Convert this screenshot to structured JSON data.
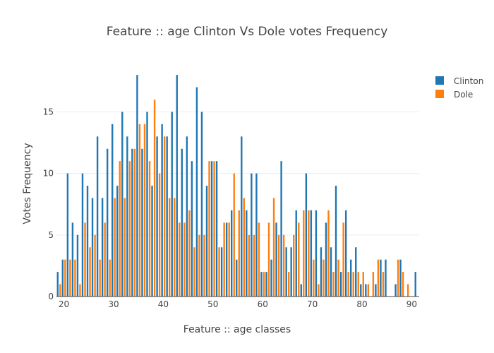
{
  "chart_data": {
    "type": "bar",
    "title": "Feature :: age Clinton Vs Dole votes Frequency",
    "xlabel": "Feature :: age classes",
    "ylabel": "Votes Frequency",
    "xlim": [
      18.5,
      91.5
    ],
    "ylim": [
      0,
      19.5
    ],
    "x_ticks": [
      20,
      30,
      40,
      50,
      60,
      70,
      80,
      90
    ],
    "y_ticks": [
      0,
      5,
      10,
      15
    ],
    "grid": true,
    "legend_position": "top-right",
    "x": [
      19,
      20,
      21,
      22,
      23,
      24,
      25,
      26,
      27,
      28,
      29,
      30,
      31,
      32,
      33,
      34,
      35,
      36,
      37,
      38,
      39,
      40,
      41,
      42,
      43,
      44,
      45,
      46,
      47,
      48,
      49,
      50,
      51,
      52,
      53,
      54,
      55,
      56,
      57,
      58,
      59,
      60,
      61,
      62,
      63,
      64,
      65,
      66,
      67,
      68,
      69,
      70,
      71,
      72,
      73,
      74,
      75,
      76,
      77,
      78,
      79,
      80,
      81,
      82,
      83,
      84,
      85,
      86,
      87,
      88,
      89,
      90,
      91
    ],
    "series": [
      {
        "name": "Clinton",
        "color": "#1f77b4",
        "values": [
          2,
          3,
          10,
          6,
          5,
          10,
          9,
          8,
          13,
          8,
          12,
          14,
          9,
          15,
          13,
          12,
          18,
          12,
          15,
          9,
          13,
          14,
          13,
          15,
          18,
          12,
          13,
          11,
          17,
          15,
          9,
          11,
          11,
          4,
          6,
          7,
          3,
          13,
          7,
          10,
          10,
          2,
          2,
          3,
          6,
          11,
          4,
          4,
          7,
          1,
          10,
          7,
          7,
          4,
          6,
          4,
          9,
          2,
          7,
          3,
          4,
          1,
          1,
          0,
          1,
          3,
          3,
          0,
          1,
          3,
          0,
          0,
          2
        ],
        "offset": -0.25
      },
      {
        "name": "Dole",
        "color": "#ff7f0e",
        "values": [
          1,
          3,
          3,
          3,
          1,
          6,
          4,
          5,
          3,
          6,
          3,
          8,
          11,
          8,
          11,
          12,
          14,
          14,
          11,
          16,
          10,
          13,
          8,
          8,
          6,
          6,
          7,
          4,
          5,
          5,
          11,
          11,
          4,
          6,
          6,
          10,
          7,
          8,
          5,
          5,
          6,
          2,
          6,
          8,
          5,
          5,
          2,
          5,
          6,
          7,
          7,
          3,
          1,
          3,
          7,
          2,
          3,
          6,
          2,
          2,
          2,
          2,
          1,
          2,
          3,
          2,
          0,
          0,
          3,
          2,
          1,
          0,
          0
        ],
        "offset": 0.25
      }
    ]
  }
}
